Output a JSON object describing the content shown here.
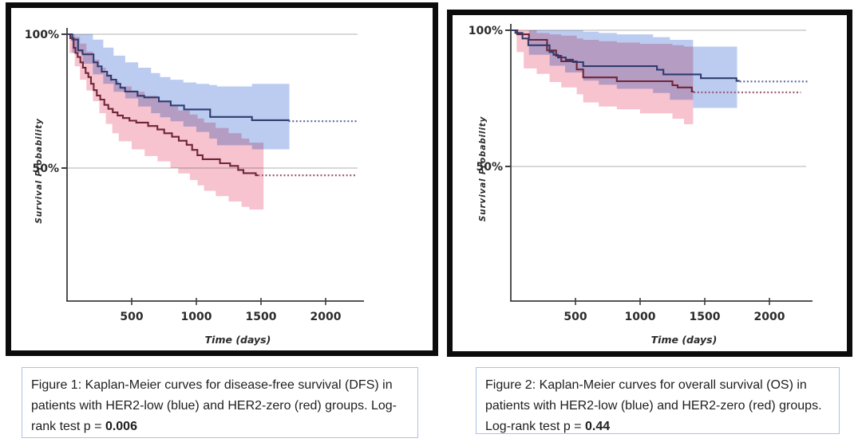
{
  "page": {
    "background": "#ffffff"
  },
  "colors": {
    "frame": "#0c0c0c",
    "caption_border": "#a9c3e6",
    "grid": "#cccccc",
    "axis": "#3d3d3d",
    "text": "#1e1e1e"
  },
  "captions": [
    {
      "figure_label": "Figure 1",
      "text_before_p": "Figure 1: Kaplan-Meier curves for disease-free survival (DFS) in patients with HER2-low (blue) and HER2-zero (red) groups. Log-rank test p = ",
      "p_value": "0.006"
    },
    {
      "figure_label": "Figure 2",
      "text_before_p": "Figure 2: Kaplan-Meier curves for overall survival (OS) in patients with HER2-low (blue) and HER2-zero (red) groups. Log-rank test p = ",
      "p_value": "0.44"
    }
  ],
  "chart_data": [
    {
      "type": "line",
      "subtype": "kaplan-meier-step",
      "outcome": "Disease-free survival (DFS)",
      "xlabel": "Time (days)",
      "ylabel": "Survival Probability",
      "x_ticks": [
        500,
        1000,
        1500,
        2000
      ],
      "y_gridlines": [
        100,
        50
      ],
      "y_tick_suffix": "%",
      "xlim_days": [
        0,
        2250
      ],
      "ylim_pct": [
        0,
        100
      ],
      "grid": true,
      "legend": "none (groups identified in caption)",
      "logrank_p": "0.006",
      "series": [
        {
          "name": "HER2-low",
          "color_label": "blue",
          "color": "#2f3c6e",
          "censor_color": "#5d67a0",
          "band_color": "#bcccf1",
          "steps": [
            [
              0,
              100
            ],
            [
              40,
              98
            ],
            [
              85,
              94
            ],
            [
              120,
              92.5
            ],
            [
              205,
              89.5
            ],
            [
              237,
              88
            ],
            [
              268,
              86
            ],
            [
              310,
              84.5
            ],
            [
              340,
              83
            ],
            [
              380,
              81.5
            ],
            [
              412,
              80
            ],
            [
              449,
              78.6
            ],
            [
              545,
              77
            ],
            [
              597,
              76.4
            ],
            [
              710,
              74.9
            ],
            [
              802,
              73.4
            ],
            [
              905,
              71.9
            ],
            [
              1107,
              69.1
            ],
            [
              1430,
              67.9
            ],
            [
              1714,
              67.5
            ]
          ],
          "censored": {
            "from": 1714,
            "to": 2250,
            "level": 67.5
          },
          "band": [
            [
              0,
              100,
              100
            ],
            [
              40,
              93,
              100
            ],
            [
              120,
              89,
              100
            ],
            [
              200,
              85,
              98
            ],
            [
              280,
              81.5,
              95
            ],
            [
              360,
              78.5,
              92
            ],
            [
              450,
              76,
              89.5
            ],
            [
              550,
              73,
              87.5
            ],
            [
              650,
              70.5,
              85.5
            ],
            [
              720,
              69,
              84
            ],
            [
              800,
              67.5,
              83
            ],
            [
              900,
              65.5,
              82
            ],
            [
              1000,
              63.5,
              81.5
            ],
            [
              1100,
              61,
              81
            ],
            [
              1160,
              58.5,
              80.5
            ],
            [
              1430,
              57,
              81.5
            ],
            [
              1720,
              57,
              81.5
            ]
          ]
        },
        {
          "name": "HER2-zero",
          "color_label": "red",
          "color": "#6f2538",
          "censor_color": "#9c5c72",
          "band_color": "#f6c3cf",
          "steps": [
            [
              0,
              100
            ],
            [
              25,
              98.5
            ],
            [
              51,
              94.9
            ],
            [
              65,
              93
            ],
            [
              82,
              91.5
            ],
            [
              103,
              89.5
            ],
            [
              123,
              87.5
            ],
            [
              144,
              85.5
            ],
            [
              165,
              84
            ],
            [
              185,
              81.5
            ],
            [
              206,
              79.1
            ],
            [
              230,
              77.1
            ],
            [
              257,
              75.6
            ],
            [
              288,
              73.6
            ],
            [
              319,
              72.1
            ],
            [
              354,
              70.8
            ],
            [
              391,
              69.6
            ],
            [
              432,
              68.7
            ],
            [
              483,
              67.7
            ],
            [
              535,
              67
            ],
            [
              627,
              65.7
            ],
            [
              699,
              64.4
            ],
            [
              751,
              63
            ],
            [
              812,
              61.7
            ],
            [
              864,
              60.2
            ],
            [
              925,
              58.7
            ],
            [
              967,
              56.8
            ],
            [
              1008,
              54.8
            ],
            [
              1049,
              53.3
            ],
            [
              1183,
              51.8
            ],
            [
              1261,
              50.8
            ],
            [
              1323,
              49.3
            ],
            [
              1364,
              48.1
            ],
            [
              1460,
              47.3
            ]
          ],
          "censored": {
            "from": 1477,
            "to": 2230,
            "level": 47.3
          },
          "band": [
            [
              0,
              100,
              100
            ],
            [
              20,
              93,
              100
            ],
            [
              60,
              88,
              99
            ],
            [
              100,
              83,
              96.5
            ],
            [
              150,
              79,
              93.5
            ],
            [
              200,
              75,
              90.5
            ],
            [
              250,
              70.5,
              87.5
            ],
            [
              300,
              66.5,
              85
            ],
            [
              350,
              63,
              82.5
            ],
            [
              400,
              60,
              80.5
            ],
            [
              500,
              57,
              78.5
            ],
            [
              600,
              54.5,
              77
            ],
            [
              700,
              52.5,
              75
            ],
            [
              800,
              50,
              73
            ],
            [
              860,
              48,
              71.5
            ],
            [
              950,
              45.5,
              70
            ],
            [
              1010,
              43.5,
              68.5
            ],
            [
              1060,
              41.5,
              67
            ],
            [
              1150,
              39.5,
              65
            ],
            [
              1250,
              37.5,
              63
            ],
            [
              1350,
              35.5,
              61
            ],
            [
              1410,
              34.5,
              59.5
            ],
            [
              1520,
              34.5,
              58
            ]
          ]
        }
      ]
    },
    {
      "type": "line",
      "subtype": "kaplan-meier-step",
      "outcome": "Overall survival (OS)",
      "xlabel": "Time (days)",
      "ylabel": "Survival Probability",
      "x_ticks": [
        500,
        1000,
        1500,
        2000
      ],
      "y_gridlines": [
        100,
        50
      ],
      "y_tick_suffix": "%",
      "xlim_days": [
        0,
        2300
      ],
      "ylim_pct": [
        0,
        100
      ],
      "grid": true,
      "legend": "none (groups identified in caption)",
      "logrank_p": "0.44",
      "series": [
        {
          "name": "HER2-low",
          "color_label": "blue",
          "color": "#2f3c6e",
          "censor_color": "#5d67a0",
          "band_color": "#bcccf1",
          "steps": [
            [
              0,
              100
            ],
            [
              35,
              99
            ],
            [
              90,
              97
            ],
            [
              135,
              94.5
            ],
            [
              300,
              92
            ],
            [
              330,
              91
            ],
            [
              365,
              90
            ],
            [
              425,
              89.2
            ],
            [
              480,
              88.3
            ],
            [
              560,
              86.8
            ],
            [
              1130,
              85.5
            ],
            [
              1180,
              83.8
            ],
            [
              1470,
              82.4
            ],
            [
              1745,
              81.4
            ]
          ],
          "censored": {
            "from": 1770,
            "to": 2294,
            "level": 81.2
          },
          "band": [
            [
              0,
              100,
              100
            ],
            [
              140,
              91,
              100
            ],
            [
              300,
              87,
              100
            ],
            [
              420,
              84.5,
              100
            ],
            [
              560,
              81.5,
              99.5
            ],
            [
              680,
              80,
              99
            ],
            [
              820,
              78.5,
              98.5
            ],
            [
              1100,
              77,
              97.5
            ],
            [
              1230,
              74.5,
              96.5
            ],
            [
              1410,
              71.5,
              94
            ],
            [
              1750,
              69.7,
              94
            ]
          ]
        },
        {
          "name": "HER2-zero",
          "color_label": "red",
          "color": "#6f2538",
          "censor_color": "#9c5c72",
          "band_color": "#f6c3cf",
          "steps": [
            [
              0,
              100
            ],
            [
              50,
              98.5
            ],
            [
              140,
              96.5
            ],
            [
              280,
              92.6
            ],
            [
              350,
              90.6
            ],
            [
              390,
              88.6
            ],
            [
              510,
              85.6
            ],
            [
              560,
              82.7
            ],
            [
              820,
              81.3
            ],
            [
              1250,
              79.8
            ],
            [
              1290,
              79
            ],
            [
              1400,
              77.5
            ]
          ],
          "censored": {
            "from": 1415,
            "to": 2243,
            "level": 77.2
          },
          "band": [
            [
              0,
              100,
              100
            ],
            [
              45,
              92,
              100
            ],
            [
              100,
              86,
              100
            ],
            [
              200,
              84,
              99
            ],
            [
              300,
              81,
              98.5
            ],
            [
              390,
              79,
              98
            ],
            [
              510,
              76.5,
              97
            ],
            [
              560,
              73.5,
              96.5
            ],
            [
              680,
              72,
              96
            ],
            [
              820,
              71,
              95.5
            ],
            [
              1000,
              69.5,
              95
            ],
            [
              1250,
              67.5,
              94.5
            ],
            [
              1340,
              65.5,
              94
            ],
            [
              1410,
              64,
              94
            ]
          ]
        }
      ]
    }
  ]
}
